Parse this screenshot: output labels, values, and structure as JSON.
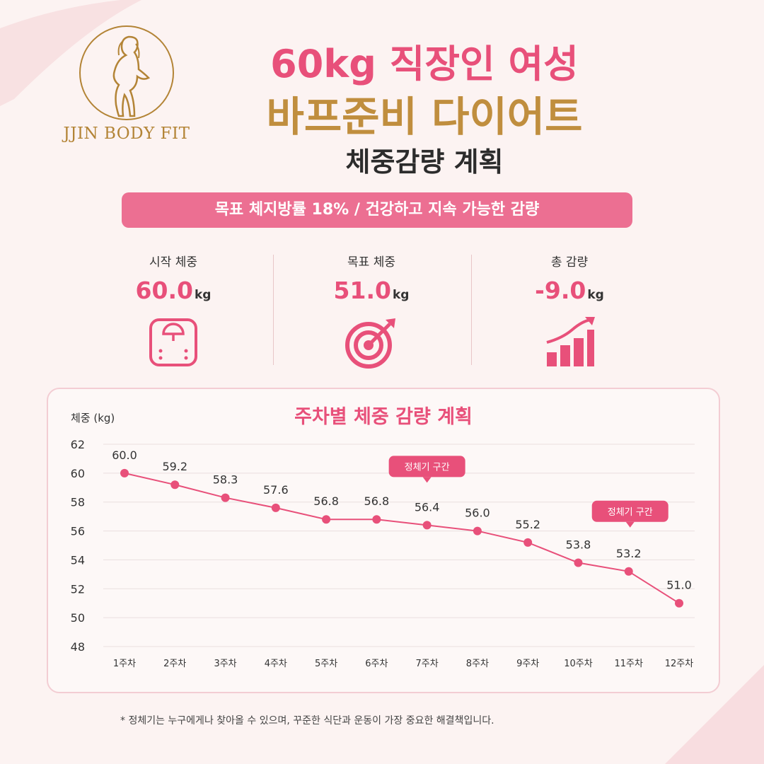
{
  "brand": {
    "name": "JJIN BODY FIT"
  },
  "title": {
    "line1": "60kg 직장인 여성",
    "line2": "바프준비 다이어트",
    "line3": "체중감량 계획"
  },
  "banner": "목표 체지방률 18% / 건강하고 지속 가능한 감량",
  "stats": [
    {
      "label": "시작 체중",
      "value": "60.0",
      "unit": "kg",
      "icon": "scale-icon"
    },
    {
      "label": "목표 체중",
      "value": "51.0",
      "unit": "kg",
      "icon": "target-icon"
    },
    {
      "label": "총 감량",
      "value": "-9.0",
      "unit": "kg",
      "icon": "growth-bars-icon"
    }
  ],
  "colors": {
    "accent": "#e8507a",
    "gold": "#c08e3e",
    "banner": "#ec6f92",
    "line": "#e8507a"
  },
  "chart_data": {
    "type": "line",
    "title": "주차별 체중 감량 계획",
    "ylabel": "체중 (kg)",
    "xlabel": "",
    "categories": [
      "1주차",
      "2주차",
      "3주차",
      "4주차",
      "5주차",
      "6주차",
      "7주차",
      "8주차",
      "9주차",
      "10주차",
      "11주차",
      "12주차"
    ],
    "values": [
      60.0,
      59.2,
      58.3,
      57.6,
      56.8,
      56.8,
      56.4,
      56.0,
      55.2,
      53.8,
      53.2,
      51.0
    ],
    "data_labels": [
      "60.0",
      "59.2",
      "58.3",
      "57.6",
      "56.8",
      "56.8",
      "56.4",
      "56.0",
      "55.2",
      "53.8",
      "53.2",
      "51.0"
    ],
    "yticks": [
      48,
      50,
      52,
      54,
      56,
      58,
      60,
      62
    ],
    "ylim": [
      48,
      62
    ],
    "grid": true,
    "annotations": [
      {
        "text": "정체기 구간",
        "category": "7주차"
      },
      {
        "text": "정체기 구간",
        "category": "11주차"
      }
    ]
  },
  "footnote": "* 정체기는 누구에게나 찾아올 수 있으며, 꾸준한 식단과 운동이 가장 중요한 해결책입니다."
}
